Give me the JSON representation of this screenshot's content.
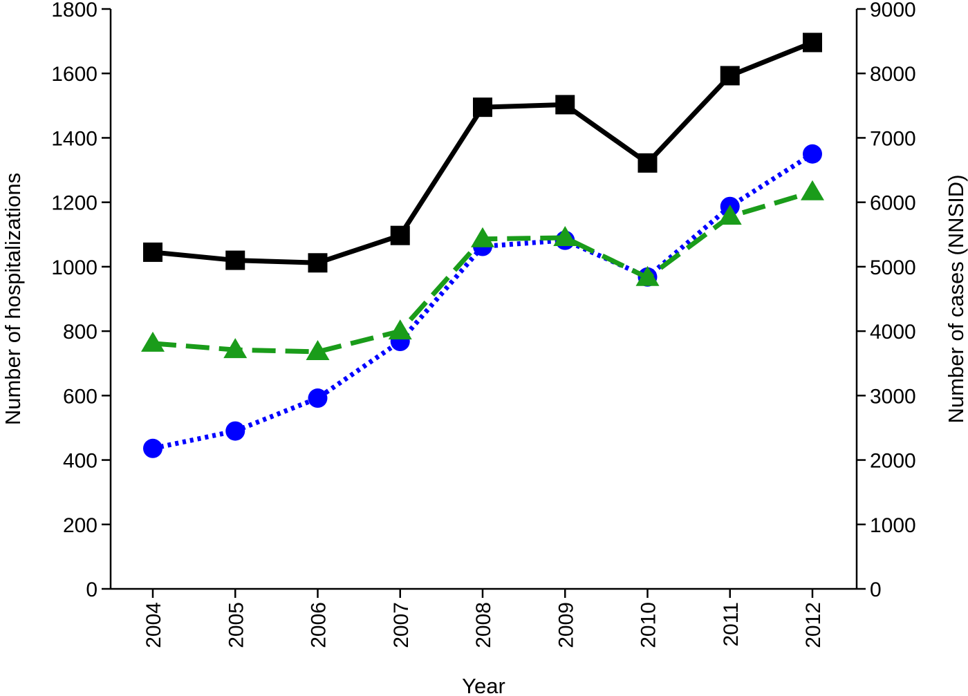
{
  "chart_data": {
    "type": "line",
    "xlabel": "Year",
    "ylabel": "Number of hospitalizations",
    "ylabel_right": "Number of cases (NNSID)",
    "categories": [
      "2004",
      "2005",
      "2006",
      "2007",
      "2008",
      "2009",
      "2010",
      "2011",
      "2012"
    ],
    "ylim": [
      0,
      1800
    ],
    "ylim_right": [
      0,
      9000
    ],
    "yticks": [
      "0",
      "200",
      "400",
      "600",
      "800",
      "1000",
      "1200",
      "1400",
      "1600",
      "1800"
    ],
    "yticks_right": [
      "0",
      "1000",
      "2000",
      "3000",
      "4000",
      "5000",
      "6000",
      "7000",
      "8000",
      "9000"
    ],
    "grid": false,
    "legend": "none",
    "series": [
      {
        "axis": "left",
        "color": "#000000",
        "line_style": "solid",
        "marker": "square",
        "values": [
          1045,
          1020,
          1012,
          1097,
          1495,
          1503,
          1322,
          1593,
          1696
        ]
      },
      {
        "axis": "left",
        "color": "#0000ff",
        "line_style": "dotted",
        "marker": "circle",
        "values": [
          436,
          490,
          592,
          768,
          1063,
          1082,
          968,
          1187,
          1350
        ]
      },
      {
        "axis": "right",
        "color": "#1a9c1a",
        "line_style": "dashed",
        "marker": "triangle",
        "values": [
          3810,
          3710,
          3680,
          4000,
          5430,
          5450,
          4830,
          5780,
          6160
        ]
      }
    ]
  }
}
